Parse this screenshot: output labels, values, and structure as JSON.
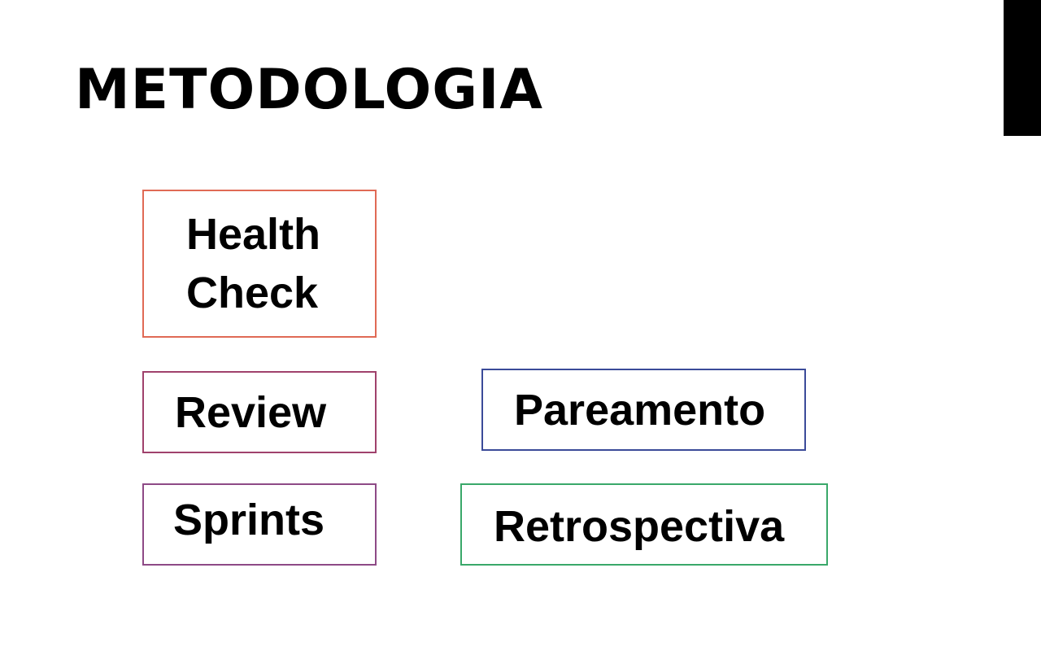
{
  "slide": {
    "title": "METODOLOGIA",
    "corner_bar_color": "#000000",
    "items": [
      {
        "label": "Health\nCheck",
        "border_color": "#e06a55"
      },
      {
        "label": "Review",
        "border_color": "#a0426c"
      },
      {
        "label": "Sprints",
        "border_color": "#8e4a86"
      },
      {
        "label": "Pareamento",
        "border_color": "#3b4b99"
      },
      {
        "label": "Retrospectiva",
        "border_color": "#3aa86a"
      }
    ]
  }
}
